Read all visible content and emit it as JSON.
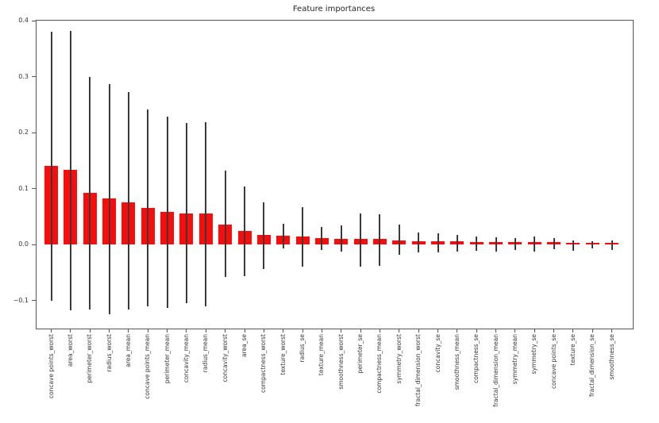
{
  "figure": {
    "background": "#ffffff"
  },
  "chart_data": {
    "type": "bar",
    "title": "Feature importances",
    "xlabel": "",
    "ylabel": "",
    "grid": false,
    "legend": null,
    "bar_color": "#f80c0c",
    "error_bar_color": "#3a3a3a",
    "spine_color": "#565656",
    "tick_label_color": "#333333",
    "title_color": "#262626",
    "ylim": [
      -0.15,
      0.4
    ],
    "yticks": [
      0.4,
      0.3,
      0.2,
      0.1,
      0.0,
      -0.1
    ],
    "ytick_labels": [
      "0.4",
      "0.3",
      "0.2",
      "0.1",
      "0.0",
      "−0.1"
    ],
    "xtick_rotation_deg": 90,
    "categories": [
      "concave points_worst",
      "area_worst",
      "perimeter_worst",
      "radius_worst",
      "area_mean",
      "concave points_mean",
      "perimeter_mean",
      "concavity_mean",
      "radius_mean",
      "concavity_worst",
      "area_se",
      "compactness_worst",
      "texture_worst",
      "radius_se",
      "texture_mean",
      "smoothness_worst",
      "perimeter_se",
      "compactness_mean",
      "symmetry_worst",
      "fractal_dimension_worst",
      "concavity_se",
      "smoothness_mean",
      "compactness_se",
      "fractal_dimension_mean",
      "symmetry_mean",
      "symmetry_se",
      "concave points_se",
      "texture_se",
      "fractal_dimension_se",
      "smoothness_se"
    ],
    "values": [
      0.14,
      0.133,
      0.092,
      0.082,
      0.076,
      0.066,
      0.058,
      0.056,
      0.055,
      0.035,
      0.024,
      0.017,
      0.016,
      0.014,
      0.011,
      0.0105,
      0.01,
      0.0095,
      0.008,
      0.0065,
      0.006,
      0.0055,
      0.005,
      0.0048,
      0.0045,
      0.0042,
      0.004,
      0.0038,
      0.0035,
      0.0033
    ],
    "error_high": [
      0.38,
      0.381,
      0.299,
      0.286,
      0.272,
      0.241,
      0.228,
      0.217,
      0.218,
      0.132,
      0.104,
      0.076,
      0.037,
      0.067,
      0.032,
      0.034,
      0.056,
      0.054,
      0.035,
      0.022,
      0.02,
      0.017,
      0.015,
      0.013,
      0.012,
      0.014,
      0.011,
      0.008,
      0.006,
      0.008
    ],
    "error_low": [
      -0.1,
      -0.117,
      -0.116,
      -0.125,
      -0.116,
      -0.11,
      -0.113,
      -0.104,
      -0.111,
      -0.058,
      -0.056,
      -0.044,
      -0.007,
      -0.04,
      -0.009,
      -0.012,
      -0.039,
      -0.038,
      -0.018,
      -0.014,
      -0.014,
      -0.013,
      -0.011,
      -0.012,
      -0.01,
      -0.013,
      -0.008,
      -0.011,
      -0.007,
      -0.01
    ]
  }
}
